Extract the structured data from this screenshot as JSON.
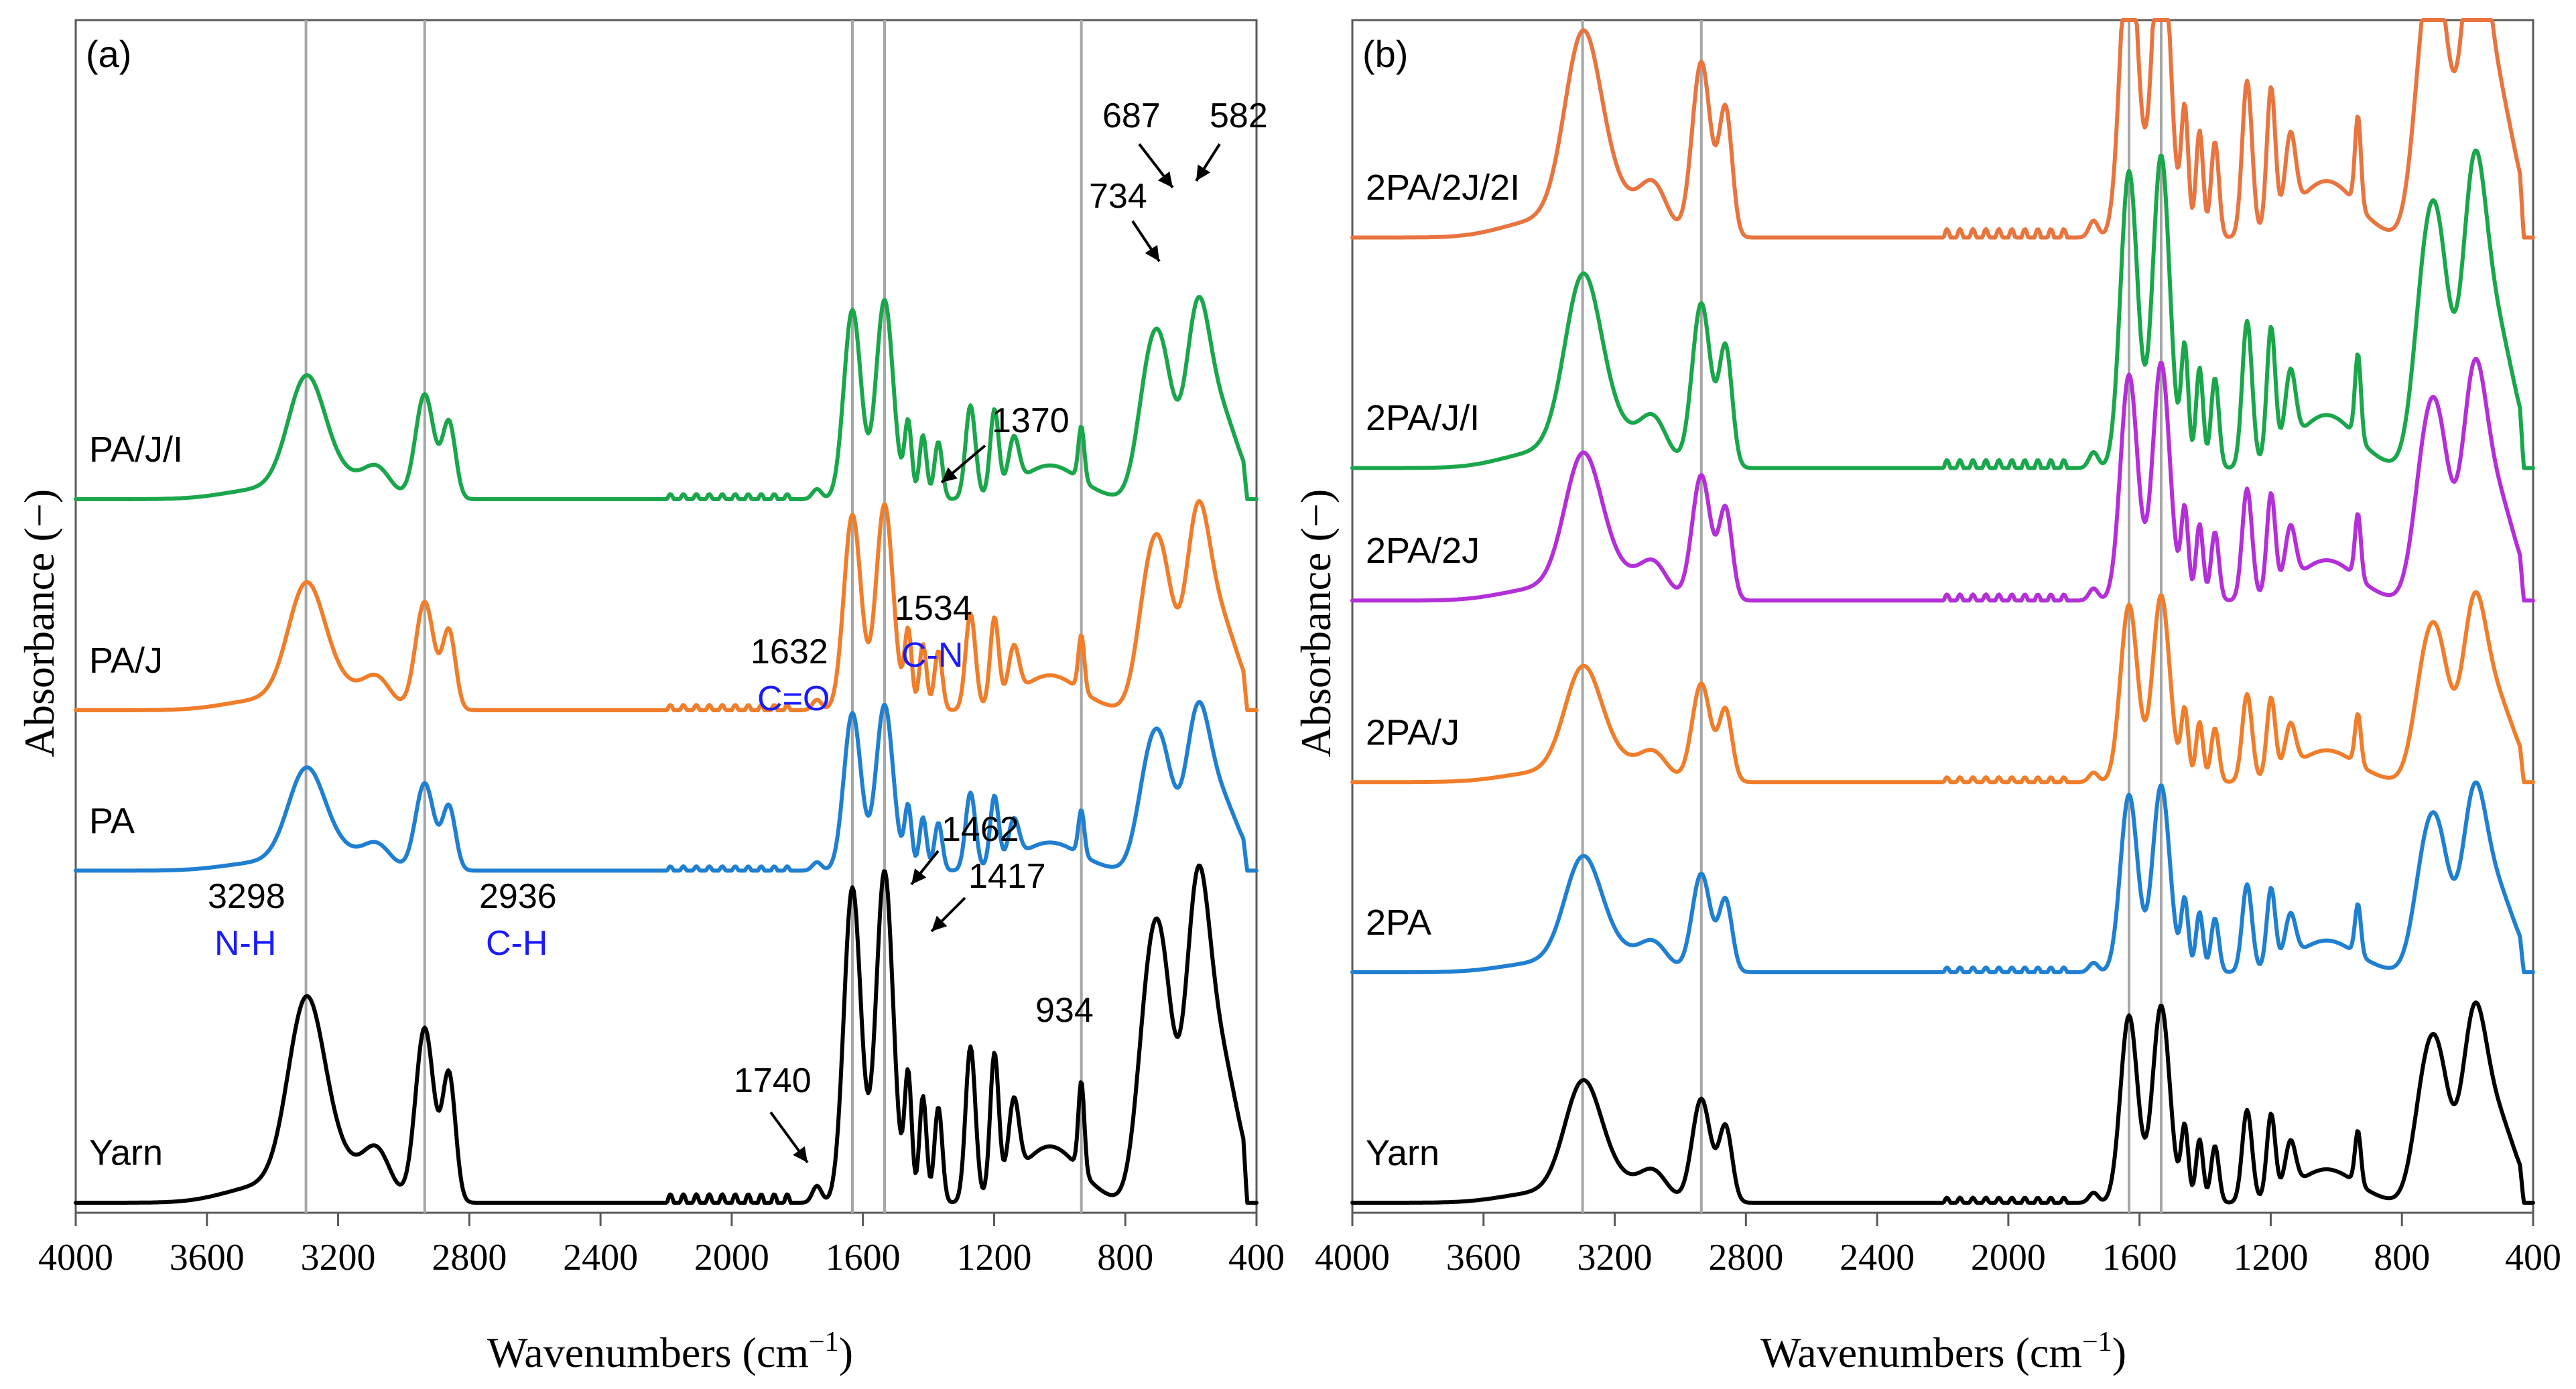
{
  "chart_data": [
    {
      "type": "line",
      "panel_label": "(a)",
      "xlabel": "Wavenumbers (cm",
      "xlabel_sup": "−1",
      "xlabel_close": ")",
      "ylabel": "Absorbance (−)",
      "xlim": [
        4000,
        400
      ],
      "reversed_x": true,
      "x_ticks": [
        "4000",
        "3600",
        "3200",
        "2800",
        "2400",
        "2000",
        "1600",
        "1200",
        "800",
        "400"
      ],
      "ref_lines": [
        3298,
        2936,
        1632,
        1534,
        934
      ],
      "series": [
        {
          "name": "Yarn",
          "color": "#000000",
          "offset": 0.0,
          "scale": 1.0
        },
        {
          "name": "PA",
          "color": "#1f7fd1",
          "offset": 1.18,
          "scale": 0.5
        },
        {
          "name": "PA/J",
          "color": "#f07d2a",
          "offset": 1.75,
          "scale": 0.62
        },
        {
          "name": "PA/J/I",
          "color": "#1aa64b",
          "offset": 2.5,
          "scale": 0.6
        }
      ],
      "annotations": [
        {
          "text": "3298",
          "x": 3298,
          "sub": "N-H"
        },
        {
          "text": "2936",
          "x": 2936,
          "sub": "C-H"
        },
        {
          "text": "1632",
          "x": 1632,
          "sub": "C=O"
        },
        {
          "text": "1534",
          "x": 1534,
          "sub": "C-N"
        },
        {
          "text": "1740",
          "x": 1740
        },
        {
          "text": "1462",
          "x": 1462
        },
        {
          "text": "1417",
          "x": 1417
        },
        {
          "text": "1370",
          "x": 1370
        },
        {
          "text": "934",
          "x": 934
        },
        {
          "text": "734",
          "x": 734
        },
        {
          "text": "687",
          "x": 687
        },
        {
          "text": "582",
          "x": 582
        }
      ]
    },
    {
      "type": "line",
      "panel_label": "(b)",
      "xlabel": "Wavenumbers (cm",
      "xlabel_sup": "−1",
      "xlabel_close": ")",
      "ylabel": "Absorbance (−)",
      "xlim": [
        4000,
        400
      ],
      "reversed_x": true,
      "x_ticks": [
        "4000",
        "3600",
        "3200",
        "2800",
        "2400",
        "2000",
        "1600",
        "1200",
        "800",
        "400"
      ],
      "ref_lines": [
        3298,
        2936,
        1632,
        1534
      ],
      "series": [
        {
          "name": "Yarn",
          "color": "#000000",
          "offset": 0.0,
          "scale": 0.58
        },
        {
          "name": "2PA",
          "color": "#1f7fd1",
          "offset": 0.8,
          "scale": 0.55
        },
        {
          "name": "2PA/J",
          "color": "#f07d2a",
          "offset": 1.46,
          "scale": 0.55
        },
        {
          "name": "2PA/2J",
          "color": "#b32fd8",
          "offset": 2.09,
          "scale": 0.7
        },
        {
          "name": "2PA/J/I",
          "color": "#1aa64b",
          "offset": 2.55,
          "scale": 0.92
        },
        {
          "name": "2PA/2J/2I",
          "color": "#e8743f",
          "offset": 3.35,
          "scale": 0.98
        }
      ]
    }
  ]
}
